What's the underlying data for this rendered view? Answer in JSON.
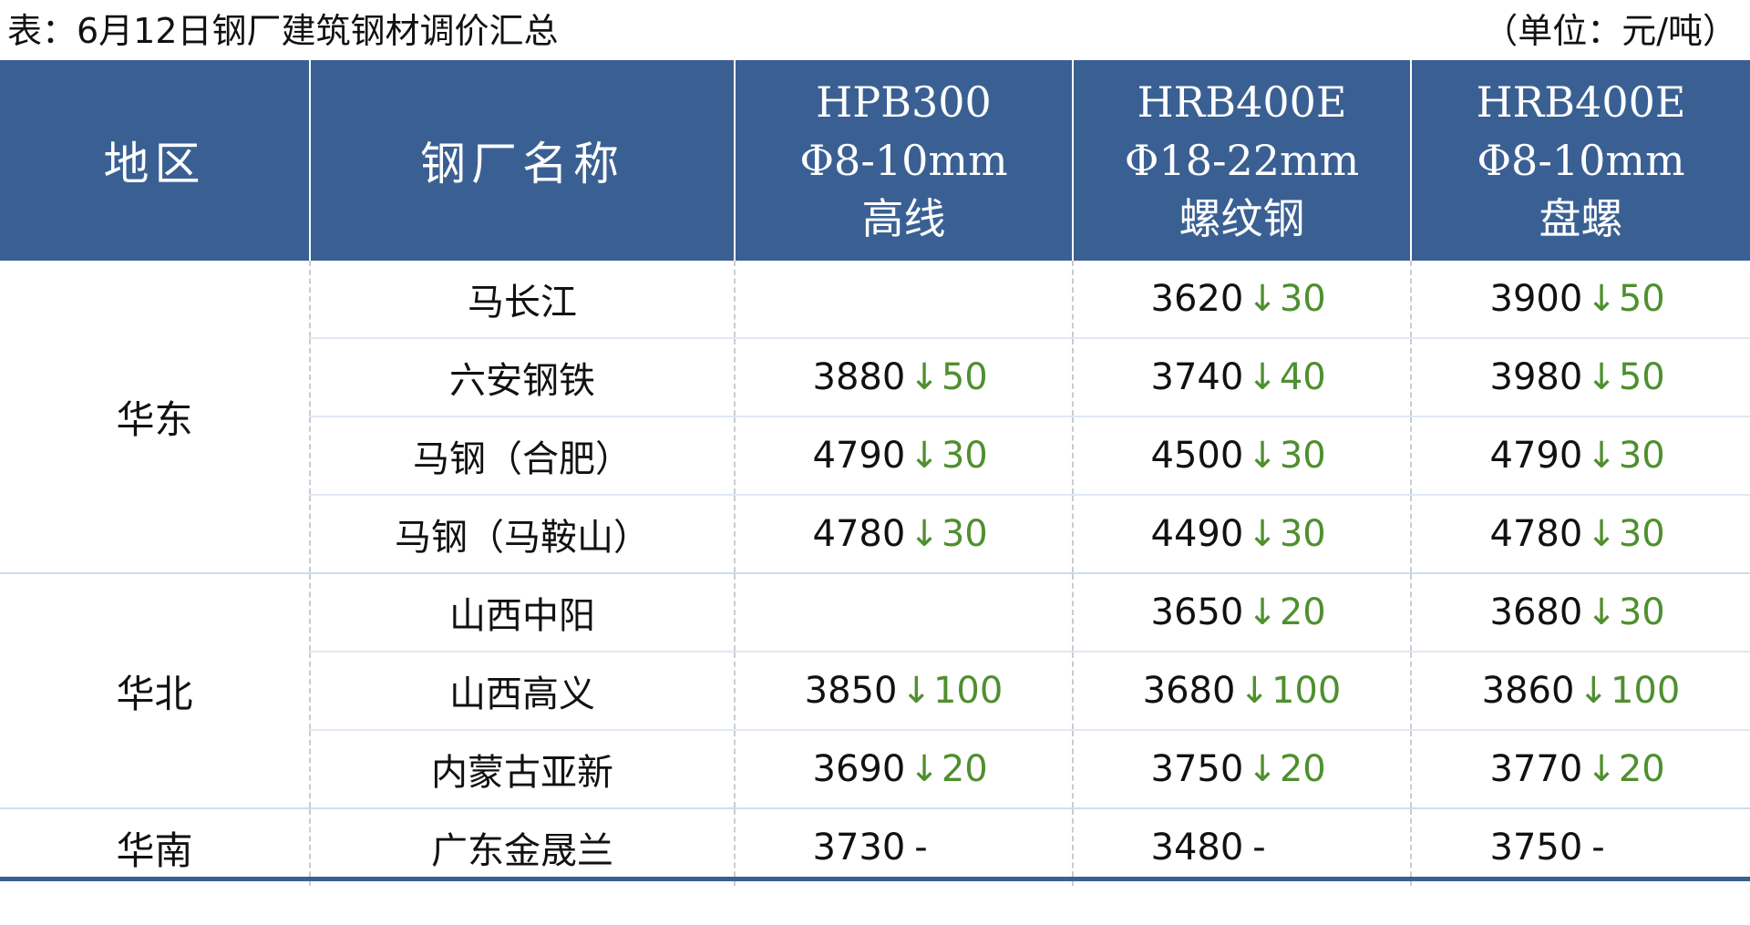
{
  "caption": {
    "title": "表：6月12日钢厂建筑钢材调价汇总",
    "unit": "（单位：元/吨）"
  },
  "header": {
    "region": "地区",
    "mill": "钢厂名称",
    "products": [
      {
        "grade": "HPB300",
        "spec": "Φ8-10mm",
        "type": "高线"
      },
      {
        "grade": "HRB400E",
        "spec": "Φ18-22mm",
        "type": "螺纹钢"
      },
      {
        "grade": "HRB400E",
        "spec": "Φ8-10mm",
        "type": "盘螺"
      }
    ]
  },
  "arrow_symbol": "↓",
  "colors": {
    "header_bg": "#3a6093",
    "decrease": "#4f8f2f"
  },
  "groups": [
    {
      "region": "华东",
      "rows": [
        {
          "mill": "马长江",
          "prices": [
            null,
            {
              "price": "3620",
              "change": "30"
            },
            {
              "price": "3900",
              "change": "50"
            }
          ]
        },
        {
          "mill": "六安钢铁",
          "prices": [
            {
              "price": "3880",
              "change": "50"
            },
            {
              "price": "3740",
              "change": "40"
            },
            {
              "price": "3980",
              "change": "50"
            }
          ]
        },
        {
          "mill": "马钢（合肥）",
          "prices": [
            {
              "price": "4790",
              "change": "30"
            },
            {
              "price": "4500",
              "change": "30"
            },
            {
              "price": "4790",
              "change": "30"
            }
          ]
        },
        {
          "mill": "马钢（马鞍山）",
          "prices": [
            {
              "price": "4780",
              "change": "30"
            },
            {
              "price": "4490",
              "change": "30"
            },
            {
              "price": "4780",
              "change": "30"
            }
          ]
        }
      ]
    },
    {
      "region": "华北",
      "rows": [
        {
          "mill": "山西中阳",
          "prices": [
            null,
            {
              "price": "3650",
              "change": "20"
            },
            {
              "price": "3680",
              "change": "30"
            }
          ]
        },
        {
          "mill": "山西高义",
          "prices": [
            {
              "price": "3850",
              "change": "100"
            },
            {
              "price": "3680",
              "change": "100"
            },
            {
              "price": "3860",
              "change": "100"
            }
          ]
        },
        {
          "mill": "内蒙古亚新",
          "prices": [
            {
              "price": "3690",
              "change": "20"
            },
            {
              "price": "3750",
              "change": "20"
            },
            {
              "price": "3770",
              "change": "20"
            }
          ]
        }
      ]
    },
    {
      "region": "华南",
      "rows": [
        {
          "mill": "广东金晟兰",
          "prices": [
            {
              "price": "3730",
              "change": "-"
            },
            {
              "price": "3480",
              "change": "-"
            },
            {
              "price": "3750",
              "change": "-"
            }
          ]
        }
      ]
    }
  ]
}
